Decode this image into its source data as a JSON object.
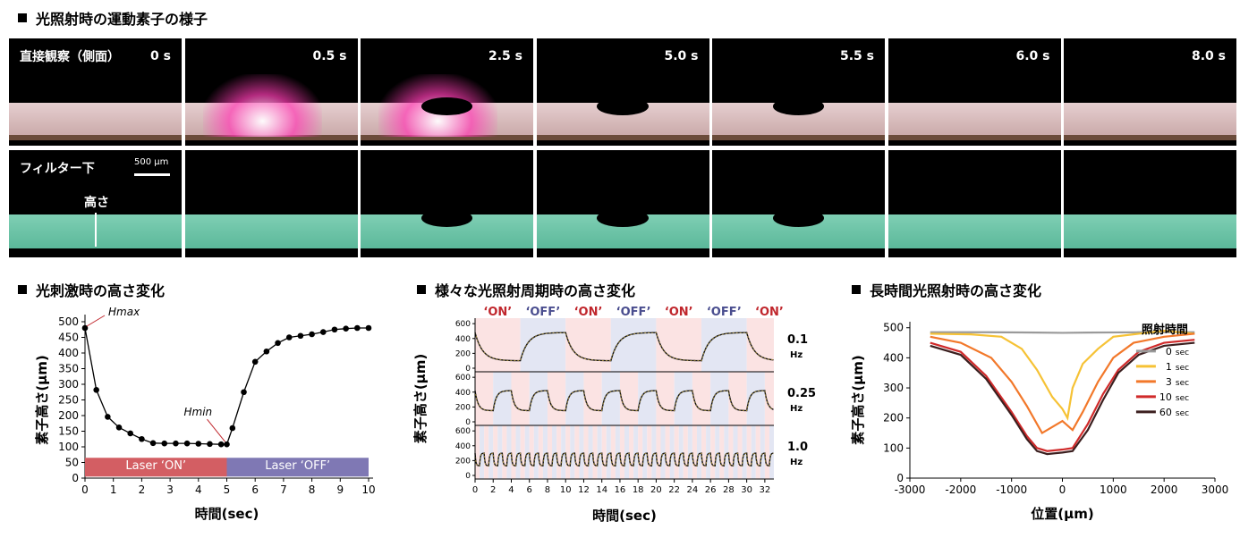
{
  "titles": {
    "top": "光照射時の運動素子の様子",
    "left": "光刺激時の高さ変化",
    "mid": "様々な光照射周期時の高さ変化",
    "right": "長時間光照射時の高さ変化"
  },
  "photos": {
    "row1_label": "直接観察（側面）",
    "row2_label": "フィルター下",
    "scale_label": "500 μm",
    "height_label": "高さ",
    "times": [
      "0 s",
      "0.5 s",
      "2.5 s",
      "5.0 s",
      "5.5 s",
      "6.0 s",
      "8.0 s"
    ]
  },
  "chart_data": [
    {
      "type": "line",
      "xlabel": "時間(sec)",
      "ylabel": "素子高さ(μm)",
      "xlim": [
        0,
        10
      ],
      "ylim": [
        0,
        500
      ],
      "xticks": [
        0,
        1,
        2,
        3,
        4,
        5,
        6,
        7,
        8,
        9,
        10
      ],
      "yticks": [
        0,
        50,
        100,
        150,
        200,
        250,
        300,
        350,
        400,
        450,
        500
      ],
      "series": [
        {
          "x": [
            0,
            0.4,
            0.8,
            1.2,
            1.6,
            2,
            2.4,
            2.8,
            3.2,
            3.6,
            4,
            4.4,
            4.8,
            5,
            5.2,
            5.6,
            6,
            6.4,
            6.8,
            7.2,
            7.6,
            8,
            8.4,
            8.8,
            9.2,
            9.6,
            10
          ],
          "y": [
            480,
            282,
            196,
            162,
            143,
            125,
            112,
            111,
            111,
            111,
            110,
            109,
            108,
            108,
            160,
            275,
            372,
            405,
            432,
            450,
            455,
            460,
            467,
            475,
            478,
            480,
            480
          ]
        }
      ],
      "annotations": [
        {
          "text": "H_max",
          "x": 0,
          "y": 480
        },
        {
          "text": "H_min",
          "x": 5,
          "y": 108
        }
      ],
      "bars": [
        {
          "label": "Laser ‘ON’",
          "x0": 0,
          "x1": 5,
          "color": "#d35e63"
        },
        {
          "label": "Laser ‘OFF’",
          "x0": 5,
          "x1": 10,
          "color": "#7f78b4"
        }
      ]
    },
    {
      "type": "line",
      "xlabel": "時間(sec)",
      "ylabel": "素子高さ(μm)",
      "xlim": [
        0,
        33
      ],
      "xticks": [
        0,
        2,
        4,
        6,
        8,
        10,
        12,
        14,
        16,
        18,
        20,
        22,
        24,
        26,
        28,
        30,
        32
      ],
      "yticks": [
        0,
        200,
        400,
        600
      ],
      "on_off_labels": [
        "‘ON’",
        "‘OFF’",
        "‘ON’",
        "‘OFF’",
        "‘ON’",
        "‘OFF’",
        "‘ON’"
      ],
      "on_color": "#c0262c",
      "off_color": "#4a4e8f",
      "series": [
        {
          "name": "0.1",
          "unit": "Hz",
          "period": 10,
          "low": 100,
          "high": 480
        },
        {
          "name": "0.25",
          "unit": "Hz",
          "period": 4,
          "low": 150,
          "high": 420
        },
        {
          "name": "1.0",
          "unit": "Hz",
          "period": 1,
          "low": 130,
          "high": 300
        }
      ]
    },
    {
      "type": "line",
      "xlabel": "位置(μm)",
      "ylabel": "素子高さ(μm)",
      "xlim": [
        -3000,
        3000
      ],
      "ylim": [
        0,
        520
      ],
      "xticks": [
        -3000,
        -2000,
        -1000,
        0,
        1000,
        2000,
        3000
      ],
      "yticks": [
        0,
        100,
        200,
        300,
        400,
        500
      ],
      "legend_title": "照射時間",
      "legend_position": "right",
      "series": [
        {
          "name": "0",
          "unit": "sec",
          "color": "#9a9a9a",
          "x": [
            -2600,
            -1500,
            -500,
            0,
            500,
            1500,
            2600
          ],
          "y": [
            485,
            485,
            484,
            483,
            484,
            485,
            485
          ]
        },
        {
          "name": "1",
          "unit": "sec",
          "color": "#f6c235",
          "x": [
            -2600,
            -1800,
            -1200,
            -800,
            -500,
            -200,
            0,
            100,
            200,
            400,
            700,
            1000,
            1500,
            2000,
            2600
          ],
          "y": [
            480,
            478,
            470,
            430,
            360,
            270,
            230,
            200,
            300,
            380,
            430,
            470,
            480,
            490,
            480
          ]
        },
        {
          "name": "3",
          "unit": "sec",
          "color": "#f2782a",
          "x": [
            -2600,
            -2000,
            -1400,
            -1000,
            -700,
            -400,
            -200,
            0,
            200,
            400,
            700,
            1000,
            1400,
            2000,
            2600
          ],
          "y": [
            470,
            450,
            400,
            320,
            240,
            150,
            170,
            190,
            160,
            220,
            320,
            400,
            450,
            470,
            480
          ]
        },
        {
          "name": "10",
          "unit": "sec",
          "color": "#d02a2a",
          "x": [
            -2600,
            -2000,
            -1500,
            -1000,
            -700,
            -500,
            -300,
            0,
            200,
            500,
            800,
            1100,
            1500,
            2000,
            2600
          ],
          "y": [
            450,
            420,
            340,
            220,
            140,
            100,
            90,
            95,
            100,
            180,
            280,
            360,
            420,
            450,
            460
          ]
        },
        {
          "name": "60",
          "unit": "sec",
          "color": "#3b1f1f",
          "x": [
            -2600,
            -2000,
            -1500,
            -1000,
            -700,
            -500,
            -300,
            0,
            200,
            500,
            800,
            1100,
            1500,
            2000,
            2600
          ],
          "y": [
            440,
            410,
            330,
            210,
            130,
            90,
            80,
            85,
            90,
            160,
            260,
            350,
            410,
            440,
            450
          ]
        }
      ]
    }
  ]
}
